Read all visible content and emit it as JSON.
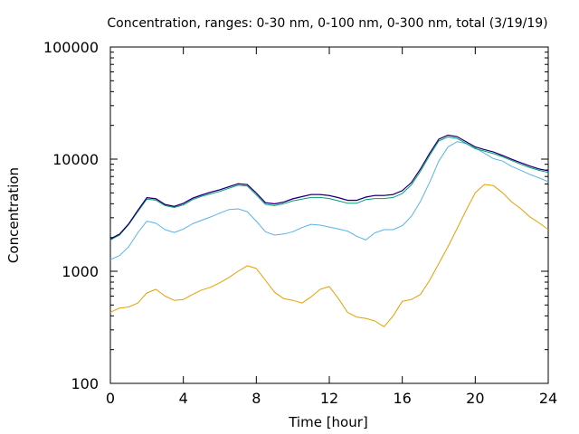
{
  "chart_data": {
    "type": "line",
    "title": "Concentration, ranges: 0-30 nm, 0-100 nm, 0-300 nm, total (3/19/19)",
    "xlabel": "Time [hour]",
    "ylabel": "Concentration",
    "xlim": [
      0,
      24
    ],
    "ylim": [
      100,
      100000
    ],
    "yscale": "log",
    "grid": false,
    "x_ticks": [
      0,
      4,
      8,
      12,
      16,
      20,
      24
    ],
    "x_tick_labels": [
      "0",
      "4",
      "8",
      "12",
      "16",
      "20",
      "24"
    ],
    "y_ticks": [
      100,
      1000,
      10000,
      100000
    ],
    "y_tick_labels": [
      "100",
      "1000",
      "10000",
      "100000"
    ],
    "x": [
      0,
      0.5,
      1,
      1.5,
      2,
      2.5,
      3,
      3.5,
      4,
      4.5,
      5,
      5.5,
      6,
      6.5,
      7,
      7.5,
      8,
      8.5,
      9,
      9.5,
      10,
      10.5,
      11,
      11.5,
      12,
      12.5,
      13,
      13.5,
      14,
      14.5,
      15,
      15.5,
      16,
      16.5,
      17,
      17.5,
      18,
      18.5,
      19,
      19.5,
      20,
      20.5,
      21,
      21.5,
      22,
      22.5,
      23,
      23.5,
      24
    ],
    "series": [
      {
        "color": "#e69f00",
        "values": [
          430,
          470,
          480,
          520,
          640,
          690,
          600,
          550,
          560,
          620,
          680,
          720,
          790,
          880,
          1000,
          1120,
          1060,
          830,
          650,
          570,
          550,
          520,
          590,
          690,
          730,
          570,
          430,
          390,
          380,
          360,
          320,
          400,
          540,
          560,
          620,
          830,
          1170,
          1650,
          2400,
          3500,
          5000,
          5950,
          5800,
          5000,
          4150,
          3600,
          3050,
          2700,
          2350
        ]
      },
      {
        "color": "#56b4e9",
        "values": [
          1270,
          1380,
          1650,
          2200,
          2800,
          2680,
          2350,
          2220,
          2380,
          2650,
          2850,
          3050,
          3300,
          3550,
          3600,
          3400,
          2800,
          2250,
          2100,
          2150,
          2250,
          2450,
          2620,
          2580,
          2480,
          2380,
          2280,
          2050,
          1900,
          2200,
          2350,
          2350,
          2550,
          3100,
          4200,
          6200,
          9600,
          12800,
          14300,
          13800,
          12600,
          11300,
          10100,
          9600,
          8600,
          7950,
          7300,
          6800,
          6300
        ]
      },
      {
        "color": "#009e73",
        "values": [
          1900,
          2100,
          2600,
          3400,
          4400,
          4300,
          3850,
          3700,
          3900,
          4350,
          4650,
          4900,
          5150,
          5500,
          5850,
          5750,
          4800,
          3950,
          3850,
          4000,
          4250,
          4400,
          4550,
          4550,
          4450,
          4250,
          4050,
          4050,
          4350,
          4450,
          4450,
          4550,
          4950,
          5900,
          7800,
          10800,
          14500,
          15800,
          15300,
          13800,
          12400,
          11800,
          11200,
          10500,
          9700,
          9000,
          8400,
          7950,
          7600
        ]
      },
      {
        "color": "#9400d3",
        "values": [
          1950,
          2150,
          2650,
          3500,
          4550,
          4450,
          3950,
          3800,
          4050,
          4500,
          4800,
          5100,
          5350,
          5700,
          6050,
          5950,
          5000,
          4100,
          4000,
          4150,
          4450,
          4650,
          4850,
          4850,
          4750,
          4550,
          4300,
          4300,
          4600,
          4750,
          4750,
          4850,
          5250,
          6200,
          8200,
          11300,
          15100,
          16400,
          15900,
          14300,
          12900,
          12200,
          11600,
          10800,
          10000,
          9300,
          8700,
          8200,
          7900
        ]
      },
      {
        "color": "#000066",
        "values": [
          1940,
          2140,
          2640,
          3480,
          4520,
          4420,
          3930,
          3780,
          4020,
          4470,
          4770,
          5070,
          5320,
          5670,
          6020,
          5920,
          4980,
          4080,
          3980,
          4130,
          4420,
          4620,
          4820,
          4820,
          4720,
          4520,
          4280,
          4280,
          4580,
          4730,
          4730,
          4830,
          5230,
          6180,
          8180,
          11260,
          15050,
          16350,
          15850,
          14250,
          12850,
          12150,
          11550,
          10750,
          9950,
          9250,
          8650,
          8150,
          7850
        ]
      }
    ]
  }
}
